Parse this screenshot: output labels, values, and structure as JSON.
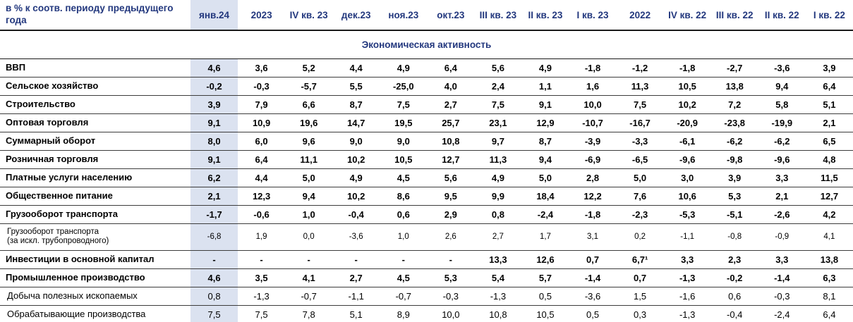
{
  "table": {
    "corner_header": "в % к соотв. периоду предыдущего года",
    "section_title": "Экономическая активность",
    "highlighted_column": "янв.24",
    "columns": [
      "янв.24",
      "2023",
      "IV кв. 23",
      "дек.23",
      "ноя.23",
      "окт.23",
      "III кв. 23",
      "II кв. 23",
      "I кв. 23",
      "2022",
      "IV кв. 22",
      "III кв. 22",
      "II кв. 22",
      "I кв. 22"
    ],
    "rows": [
      {
        "label": "ВВП",
        "bold": true,
        "small": false,
        "values": [
          "4,6",
          "3,6",
          "5,2",
          "4,4",
          "4,9",
          "6,4",
          "5,6",
          "4,9",
          "-1,8",
          "-1,2",
          "-1,8",
          "-2,7",
          "-3,6",
          "3,9"
        ]
      },
      {
        "label": "Сельское хозяйство",
        "bold": true,
        "small": false,
        "values": [
          "-0,2",
          "-0,3",
          "-5,7",
          "5,5",
          "-25,0",
          "4,0",
          "2,4",
          "1,1",
          "1,6",
          "11,3",
          "10,5",
          "13,8",
          "9,4",
          "6,4"
        ]
      },
      {
        "label": "Строительство",
        "bold": true,
        "small": false,
        "values": [
          "3,9",
          "7,9",
          "6,6",
          "8,7",
          "7,5",
          "2,7",
          "7,5",
          "9,1",
          "10,0",
          "7,5",
          "10,2",
          "7,2",
          "5,8",
          "5,1"
        ]
      },
      {
        "label": "Оптовая торговля",
        "bold": true,
        "small": false,
        "values": [
          "9,1",
          "10,9",
          "19,6",
          "14,7",
          "19,5",
          "25,7",
          "23,1",
          "12,9",
          "-10,7",
          "-16,7",
          "-20,9",
          "-23,8",
          "-19,9",
          "2,1"
        ]
      },
      {
        "label": "Суммарный оборот",
        "bold": true,
        "small": false,
        "values": [
          "8,0",
          "6,0",
          "9,6",
          "9,0",
          "9,0",
          "10,8",
          "9,7",
          "8,7",
          "-3,9",
          "-3,3",
          "-6,1",
          "-6,2",
          "-6,2",
          "6,5"
        ]
      },
      {
        "label": "Розничная торговля",
        "bold": true,
        "small": false,
        "values": [
          "9,1",
          "6,4",
          "11,1",
          "10,2",
          "10,5",
          "12,7",
          "11,3",
          "9,4",
          "-6,9",
          "-6,5",
          "-9,6",
          "-9,8",
          "-9,6",
          "4,8"
        ]
      },
      {
        "label": "Платные услуги населению",
        "bold": true,
        "small": false,
        "values": [
          "6,2",
          "4,4",
          "5,0",
          "4,9",
          "4,5",
          "5,6",
          "4,9",
          "5,0",
          "2,8",
          "5,0",
          "3,0",
          "3,9",
          "3,3",
          "11,5"
        ]
      },
      {
        "label": "Общественное питание",
        "bold": true,
        "small": false,
        "values": [
          "2,1",
          "12,3",
          "9,4",
          "10,2",
          "8,6",
          "9,5",
          "9,9",
          "18,4",
          "12,2",
          "7,6",
          "10,6",
          "5,3",
          "2,1",
          "12,7"
        ]
      },
      {
        "label": "Грузооборот транспорта",
        "bold": true,
        "small": false,
        "values": [
          "-1,7",
          "-0,6",
          "1,0",
          "-0,4",
          "0,6",
          "2,9",
          "0,8",
          "-2,4",
          "-1,8",
          "-2,3",
          "-5,3",
          "-5,1",
          "-2,6",
          "4,2"
        ]
      },
      {
        "label": "Грузооборот транспорта\n(за искл. трубопроводного)",
        "bold": false,
        "small": true,
        "values": [
          "-6,8",
          "1,9",
          "0,0",
          "-3,6",
          "1,0",
          "2,6",
          "2,7",
          "1,7",
          "3,1",
          "0,2",
          "-1,1",
          "-0,8",
          "-0,9",
          "4,1"
        ]
      },
      {
        "label": "Инвестиции в основной капитал",
        "bold": true,
        "small": false,
        "values": [
          "-",
          "-",
          "-",
          "-",
          "-",
          "-",
          "13,3",
          "12,6",
          "0,7",
          "6,7¹",
          "3,3",
          "2,3",
          "3,3",
          "13,8"
        ]
      },
      {
        "label": "Промышленное производство",
        "bold": true,
        "small": false,
        "values": [
          "4,6",
          "3,5",
          "4,1",
          "2,7",
          "4,5",
          "5,3",
          "5,4",
          "5,7",
          "-1,4",
          "0,7",
          "-1,3",
          "-0,2",
          "-1,4",
          "6,3"
        ]
      },
      {
        "label": "Добыча полезных ископаемых",
        "bold": false,
        "small": false,
        "values": [
          "0,8",
          "-1,3",
          "-0,7",
          "-1,1",
          "-0,7",
          "-0,3",
          "-1,3",
          "0,5",
          "-3,6",
          "1,5",
          "-1,6",
          "0,6",
          "-0,3",
          "8,1"
        ]
      },
      {
        "label": "Обрабатывающие производства",
        "bold": false,
        "small": false,
        "values": [
          "7,5",
          "7,5",
          "7,8",
          "5,1",
          "8,9",
          "10,0",
          "10,8",
          "10,5",
          "0,5",
          "0,3",
          "-1,3",
          "-0,4",
          "-2,4",
          "6,4"
        ]
      }
    ]
  },
  "colors": {
    "header_text": "#23387e",
    "section_title_text": "#23387e",
    "highlight_column_bg": "#dbe2f0",
    "row_border": "#3c3c3c",
    "header_border": "#1a1a1a",
    "value_text": "#000000"
  }
}
